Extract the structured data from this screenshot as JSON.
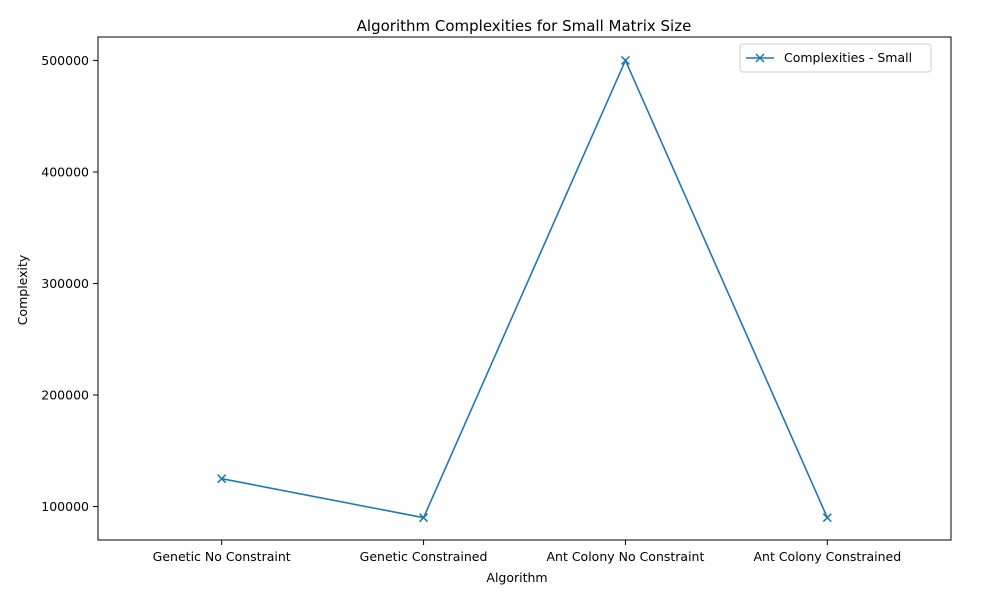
{
  "chart_data": {
    "type": "line",
    "title": "Algorithm Complexities for Small Matrix Size",
    "xlabel": "Algorithm",
    "ylabel": "Complexity",
    "categories": [
      "Genetic No Constraint",
      "Genetic Constrained",
      "Ant Colony No Constraint",
      "Ant Colony Constrained"
    ],
    "series": [
      {
        "name": "Complexities - Small",
        "values": [
          125000,
          90000,
          500000,
          90000
        ],
        "color": "#1f77b4",
        "marker": "x"
      }
    ],
    "ylim": [
      70000,
      521000
    ],
    "yticks": [
      100000,
      200000,
      300000,
      400000,
      500000
    ],
    "grid": false,
    "legend": "top-right"
  }
}
